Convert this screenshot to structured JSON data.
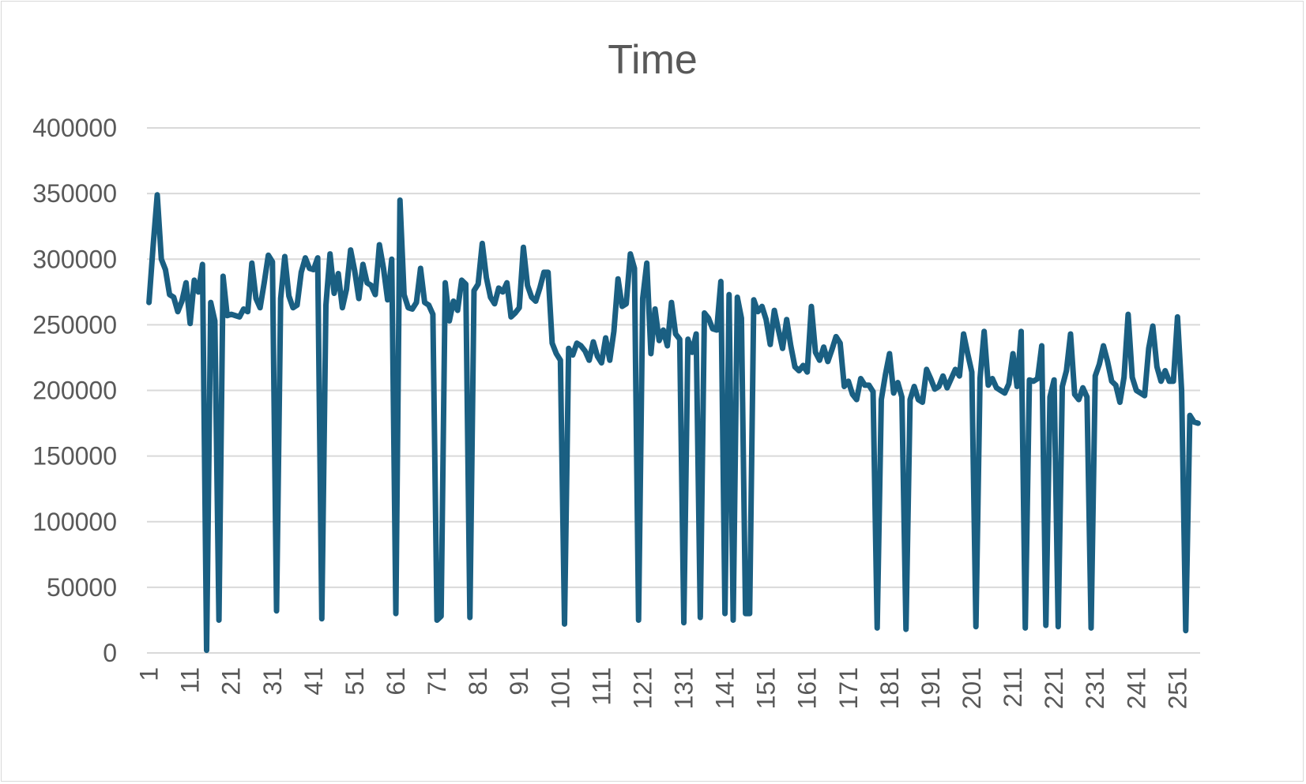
{
  "chart_data": {
    "type": "line",
    "title": "Time",
    "xlabel": "",
    "ylabel": "",
    "ylim": [
      0,
      400000
    ],
    "yticks": [
      "0",
      "50000",
      "100000",
      "150000",
      "200000",
      "250000",
      "300000",
      "350000",
      "400000"
    ],
    "xticks": [
      "1",
      "11",
      "21",
      "31",
      "41",
      "51",
      "61",
      "71",
      "81",
      "91",
      "101",
      "111",
      "121",
      "131",
      "141",
      "151",
      "161",
      "171",
      "181",
      "191",
      "201",
      "211",
      "221",
      "231",
      "241",
      "251"
    ],
    "x_first": 1,
    "x_last": 256,
    "grid": true,
    "legend": "none",
    "series_color": "#1a5f82",
    "series": [
      {
        "values": [
          267000,
          310000,
          349000,
          300000,
          292000,
          273000,
          271000,
          260000,
          268000,
          282000,
          251000,
          284000,
          275000,
          296000,
          2000,
          267000,
          253000,
          25000,
          287000,
          257000,
          258000,
          257000,
          256000,
          262000,
          260000,
          297000,
          270000,
          263000,
          282000,
          303000,
          298000,
          32000,
          270000,
          302000,
          272000,
          263000,
          265000,
          290000,
          301000,
          293000,
          292000,
          301000,
          26000,
          265000,
          304000,
          274000,
          289000,
          263000,
          277000,
          307000,
          291000,
          270000,
          296000,
          282000,
          280000,
          273000,
          311000,
          293000,
          269000,
          300000,
          30000,
          345000,
          273000,
          263000,
          262000,
          267000,
          293000,
          267000,
          265000,
          258000,
          25000,
          28000,
          282000,
          253000,
          268000,
          261000,
          284000,
          281000,
          27000,
          276000,
          281000,
          312000,
          286000,
          271000,
          266000,
          278000,
          275000,
          282000,
          256000,
          259000,
          263000,
          309000,
          280000,
          271000,
          268000,
          278000,
          290000,
          290000,
          236000,
          228000,
          223000,
          22000,
          232000,
          227000,
          236000,
          234000,
          230000,
          223000,
          237000,
          226000,
          221000,
          240000,
          223000,
          245000,
          285000,
          264000,
          266000,
          304000,
          293000,
          25000,
          270000,
          297000,
          228000,
          262000,
          238000,
          246000,
          234000,
          267000,
          243000,
          239000,
          23000,
          239000,
          229000,
          243000,
          27000,
          259000,
          255000,
          247000,
          246000,
          283000,
          30000,
          273000,
          25000,
          271000,
          255000,
          30000,
          30000,
          269000,
          260000,
          264000,
          254000,
          235000,
          261000,
          246000,
          232000,
          254000,
          234000,
          218000,
          215000,
          219000,
          214000,
          264000,
          229000,
          223000,
          233000,
          222000,
          231000,
          241000,
          236000,
          203000,
          207000,
          197000,
          193000,
          209000,
          204000,
          204000,
          199000,
          19000,
          193000,
          212000,
          228000,
          198000,
          206000,
          195000,
          18000,
          193000,
          203000,
          193000,
          191000,
          216000,
          209000,
          201000,
          203000,
          211000,
          202000,
          209000,
          216000,
          211000,
          243000,
          228000,
          214000,
          20000,
          209000,
          245000,
          204000,
          209000,
          202000,
          200000,
          198000,
          205000,
          228000,
          203000,
          245000,
          19000,
          208000,
          207000,
          209000,
          234000,
          21000,
          195000,
          208000,
          20000,
          203000,
          215000,
          243000,
          197000,
          193000,
          202000,
          195000,
          19000,
          211000,
          220000,
          234000,
          222000,
          207000,
          204000,
          191000,
          210000,
          258000,
          210000,
          200000,
          198000,
          196000,
          232000,
          249000,
          218000,
          207000,
          215000,
          207000,
          207000,
          256000,
          200000,
          17000,
          181000,
          176000,
          175000
        ]
      }
    ]
  }
}
